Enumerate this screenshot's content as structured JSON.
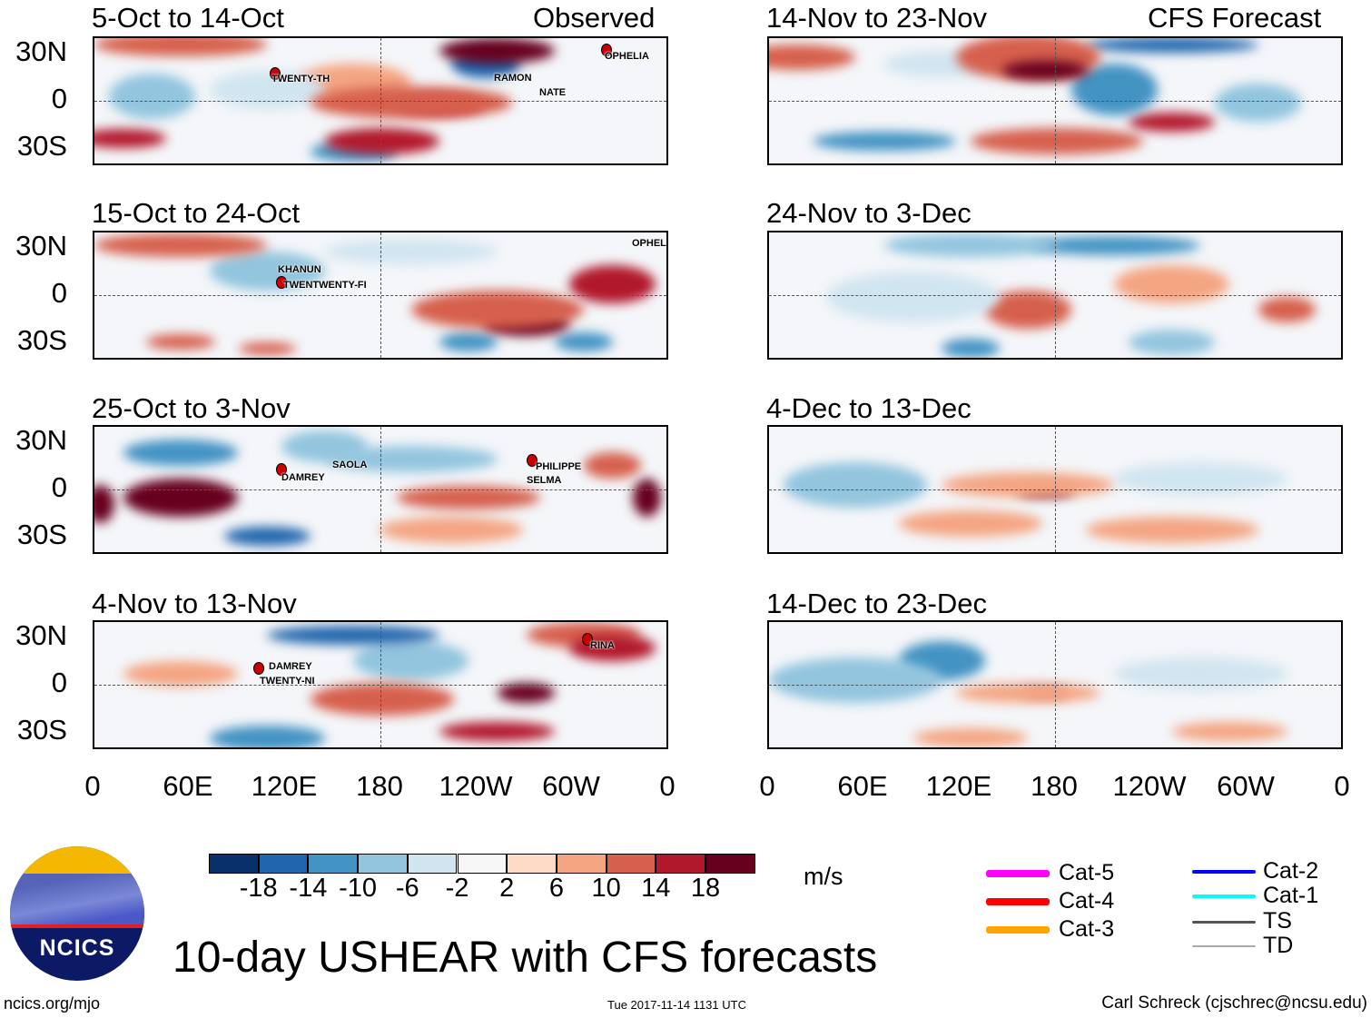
{
  "header": {
    "left_label": "Observed",
    "right_label": "CFS Forecast"
  },
  "panels_observed": [
    {
      "title": "5-Oct to 14-Oct",
      "storms": [
        "TWENTY-TH",
        "RAMON",
        "NATE",
        "OPHELIA"
      ]
    },
    {
      "title": "15-Oct to 24-Oct",
      "storms": [
        "KHANUN",
        "TWENTWENTY-FI",
        "OPHELIA"
      ]
    },
    {
      "title": "25-Oct to 3-Nov",
      "storms": [
        "DAMREY",
        "SAOLA",
        "PHILIPPE",
        "SELMA"
      ]
    },
    {
      "title": "4-Nov to 13-Nov",
      "storms": [
        "DAMREY",
        "TWENTY-NI",
        "RINA"
      ]
    }
  ],
  "panels_forecast": [
    {
      "title": "14-Nov to 23-Nov"
    },
    {
      "title": "24-Nov to 3-Dec"
    },
    {
      "title": "4-Dec to 13-Dec"
    },
    {
      "title": "14-Dec to 23-Dec"
    }
  ],
  "lat_labels": [
    "30N",
    "0",
    "30S"
  ],
  "lon_labels": [
    "0",
    "60E",
    "120E",
    "180",
    "120W",
    "60W",
    "0"
  ],
  "colorbar": {
    "labels": [
      "-18",
      "-14",
      "-10",
      "-6",
      "-2",
      "2",
      "6",
      "10",
      "14",
      "18"
    ],
    "colors": [
      "#08306b",
      "#2166ac",
      "#4393c3",
      "#92c5de",
      "#d1e5f0",
      "#f7f7f7",
      "#fddbc7",
      "#f4a582",
      "#d6604d",
      "#b2182b",
      "#67001f"
    ],
    "units": "m/s"
  },
  "legend": [
    {
      "label": "Cat-5",
      "color": "#ff00ff"
    },
    {
      "label": "Cat-4",
      "color": "#ff0000"
    },
    {
      "label": "Cat-3",
      "color": "#ffa500"
    },
    {
      "label": "Cat-2",
      "color": "#0000ff"
    },
    {
      "label": "Cat-1",
      "color": "#00ffff"
    },
    {
      "label": "TS",
      "color": "#555555"
    },
    {
      "label": "TD",
      "color": "#aaaaaa"
    }
  ],
  "logo_text": "NCICS",
  "title": "10-day USHEAR with CFS forecasts",
  "footer": {
    "url": "ncics.org/mjo",
    "timestamp": "Tue 2017-11-14 1131 UTC",
    "author": "Carl Schreck (cjschrec@ncsu.edu)"
  }
}
